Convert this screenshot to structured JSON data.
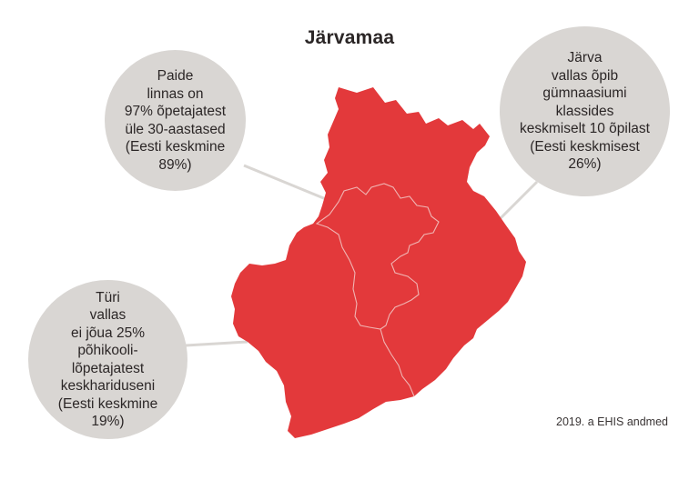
{
  "title": "Järvamaa",
  "colors": {
    "region_fill": "#e3393b",
    "border": "#f0b5b3",
    "bubble": "#d9d6d3",
    "connector": "#d9d6d3"
  },
  "callouts": {
    "paide": {
      "lines": [
        "Paide",
        "linnas on",
        "97% õpetajatest",
        "üle 30-aastased",
        "(Eesti keskmine",
        "89%)"
      ]
    },
    "jarva": {
      "lines": [
        "Järva",
        "vallas õpib",
        "gümnaasiumi",
        "klassides",
        "keskmiselt 10 õpilast",
        "(Eesti keskmisest",
        "26%)"
      ]
    },
    "tyri": {
      "lines": [
        "Türi",
        "vallas",
        "ei jõua 25%",
        "põhikooli-",
        "lõpetajatest",
        "keskhariduseni",
        "(Eesti keskmine",
        "19%)"
      ]
    }
  },
  "source": "2019. a EHIS andmed"
}
